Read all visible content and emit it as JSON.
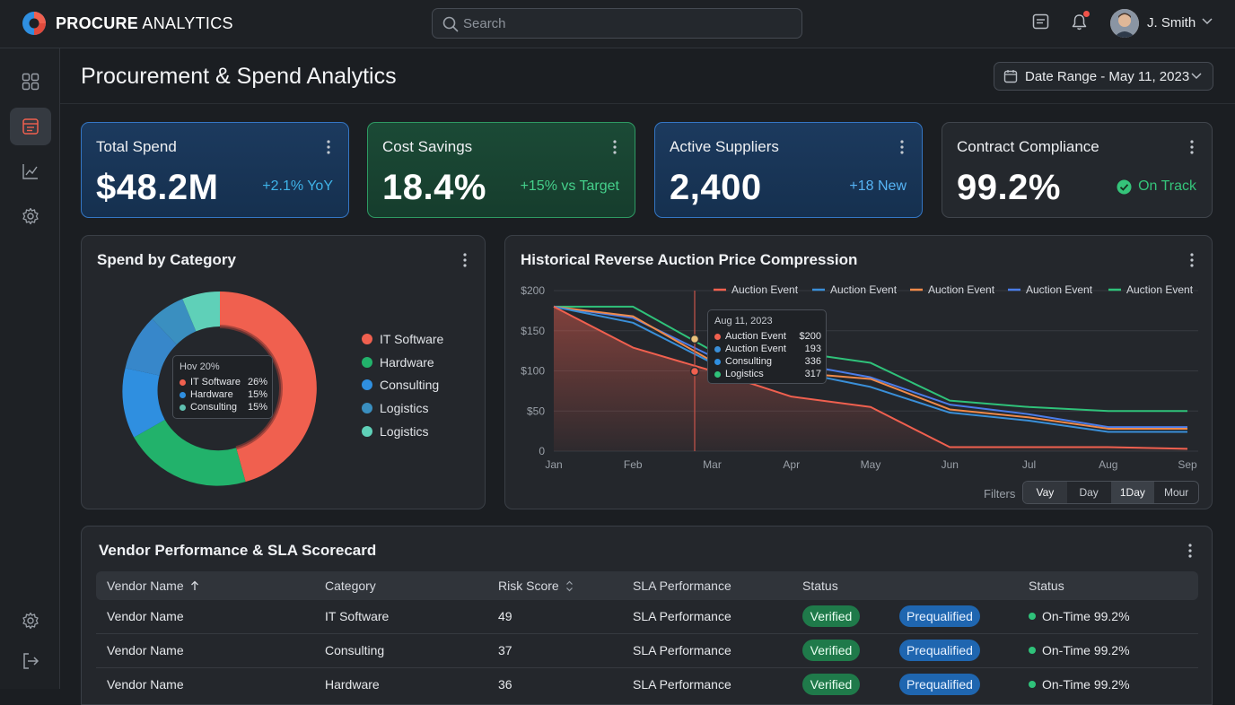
{
  "app": {
    "brand_bold": "PROCURE",
    "brand_rest": " ANALYTICS"
  },
  "search": {
    "placeholder": "Search",
    "value": ""
  },
  "header": {
    "user_name": "J. Smith"
  },
  "page": {
    "title": "Procurement & Spend Analytics",
    "date_range": "Date Range - May 11, 2023"
  },
  "kpis": [
    {
      "label": "Total Spend",
      "value": "$48.2M",
      "delta": "+2.1% YoY",
      "color": "#3fb3e8"
    },
    {
      "label": "Cost Savings",
      "value": "18.4%",
      "delta": "+15% vs Target",
      "color": "#45d08b"
    },
    {
      "label": "Active Suppliers",
      "value": "2,400",
      "delta": "+18 New",
      "color": "#56b4f5"
    },
    {
      "label": "Contract Compliance",
      "value": "99.2%",
      "delta": "On Track",
      "color": "#35c47a"
    }
  ],
  "spend_panel": {
    "title": "Spend by Category",
    "legend": [
      {
        "label": "IT Software",
        "color": "#f0604f"
      },
      {
        "label": "Hardware",
        "color": "#22b26b"
      },
      {
        "label": "Consulting",
        "color": "#2f8fe0"
      },
      {
        "label": "Logistics",
        "color": "#3a8fc0"
      },
      {
        "label": "Logistics",
        "color": "#5fd0b8"
      }
    ],
    "tooltip": {
      "title": "Hov 20%",
      "rows": [
        {
          "label": "IT Software",
          "value": "26%",
          "color": "#f0604f"
        },
        {
          "label": "Hardware",
          "value": "15%",
          "color": "#2f8fe0"
        },
        {
          "label": "Consulting",
          "value": "15%",
          "color": "#5fc0b0"
        }
      ]
    }
  },
  "chart_data": {
    "type": "line",
    "title": "Historical Reverse Auction Price Compression",
    "x": [
      "Jan",
      "Feb",
      "Mar",
      "Apr",
      "May",
      "Jun",
      "Jul",
      "Aug",
      "Sep"
    ],
    "ylim": [
      0,
      200
    ],
    "y_ticks": [
      "$200",
      "$150",
      "$100",
      "$50",
      "0"
    ],
    "y_tick_values": [
      200,
      150,
      100,
      50,
      0
    ],
    "grid": true,
    "legend_position": "top-right",
    "series": [
      {
        "name": "Auction Event",
        "color": "#f0604f",
        "values": [
          180,
          129,
          100,
          68,
          55,
          5,
          5,
          5,
          3
        ]
      },
      {
        "name": "Auction Event",
        "color": "#3a8fd8",
        "values": [
          180,
          160,
          110,
          100,
          80,
          48,
          38,
          24,
          24
        ]
      },
      {
        "name": "Auction Event",
        "color": "#f08a4a",
        "values": [
          180,
          168,
          112,
          98,
          90,
          52,
          42,
          28,
          28
        ]
      },
      {
        "name": "Auction Event",
        "color": "#4a7ce8",
        "values": [
          180,
          166,
          118,
          110,
          92,
          58,
          46,
          30,
          30
        ]
      },
      {
        "name": "Auction Event",
        "color": "#2fc27a",
        "values": [
          180,
          180,
          125,
          124,
          110,
          63,
          55,
          50,
          50
        ]
      }
    ],
    "annotation": {
      "date": "Aug 11, 2023",
      "rows": [
        {
          "label": "Auction Event",
          "value": "$200",
          "color": "#f0604f"
        },
        {
          "label": "Auction Event",
          "value": "193",
          "color": "#3a8fd8"
        },
        {
          "label": "Consulting",
          "value": "336",
          "color": "#2f8fe0"
        },
        {
          "label": "Logistics",
          "value": "317",
          "color": "#2fc27a"
        }
      ]
    }
  },
  "filters": {
    "label": "Filters",
    "options": [
      "Vay",
      "Day",
      "1Day",
      "Mour"
    ],
    "selected": "1Day"
  },
  "vendor_table": {
    "title": "Vendor Performance & SLA Scorecard",
    "columns": [
      "Vendor Name",
      "Category",
      "Risk Score",
      "SLA Performance",
      "Status",
      "Status"
    ],
    "rows": [
      {
        "vendor": "Vendor Name",
        "category": "IT Software",
        "risk": "49",
        "sla": "SLA Performance",
        "status1": "Verified",
        "status2": "Prequalified",
        "ontime": "On-Time 99.2%"
      },
      {
        "vendor": "Vendor Name",
        "category": "Consulting",
        "risk": "37",
        "sla": "SLA Performance",
        "status1": "Verified",
        "status2": "Prequalified",
        "ontime": "On-Time 99.2%"
      },
      {
        "vendor": "Vendor Name",
        "category": "Hardware",
        "risk": "36",
        "sla": "SLA Performance",
        "status1": "Verified",
        "status2": "Prequalified",
        "ontime": "On-Time 99.2%"
      }
    ]
  },
  "icons": {
    "logo": "pie-logo-icon",
    "search": "search-icon",
    "messages": "message-icon",
    "notifications": "bell-icon",
    "sidebar": [
      "grid-icon",
      "document-icon",
      "trend-chart-icon",
      "gear-icon",
      "gear-icon",
      "logout-icon"
    ]
  }
}
